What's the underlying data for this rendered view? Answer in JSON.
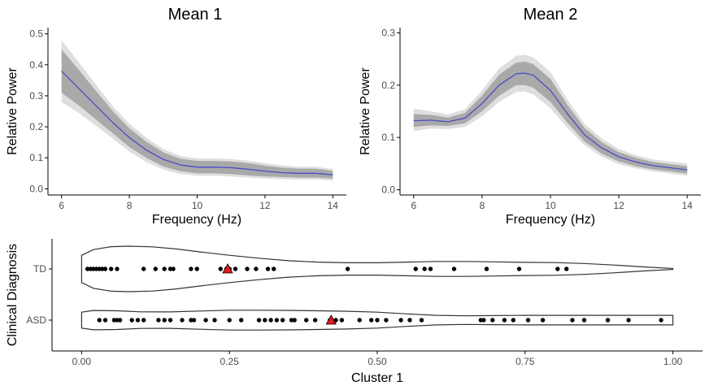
{
  "colors": {
    "line": "#4b4bc8",
    "band_outer": "#dedede",
    "band_inner": "#a9a9a9",
    "points": "#000000",
    "mean_marker": "#e31a1c",
    "violin_stroke": "#333333",
    "axis": "#000000",
    "tick_label": "#4d4d4d"
  },
  "chart_data": [
    {
      "id": "mean1",
      "type": "line",
      "title": "Mean 1",
      "xlabel": "Frequency (Hz)",
      "ylabel": "Relative Power",
      "xlim": [
        5.6,
        14.4
      ],
      "ylim": [
        -0.02,
        0.52
      ],
      "xticks": [
        6,
        8,
        10,
        12,
        14
      ],
      "xtick_labels": [
        "6",
        "8",
        "10",
        "12",
        "14"
      ],
      "yticks": [
        0.0,
        0.1,
        0.2,
        0.3,
        0.4,
        0.5
      ],
      "ytick_labels": [
        "0.0",
        "0.1",
        "0.2",
        "0.3",
        "0.4",
        "0.5"
      ],
      "x": [
        6,
        6.5,
        7,
        7.5,
        8,
        8.5,
        9,
        9.5,
        10,
        10.5,
        11,
        11.5,
        12,
        12.5,
        13,
        13.5,
        14
      ],
      "mean": [
        0.38,
        0.325,
        0.27,
        0.215,
        0.165,
        0.125,
        0.095,
        0.077,
        0.07,
        0.07,
        0.068,
        0.063,
        0.057,
        0.052,
        0.05,
        0.05,
        0.045
      ],
      "inner_lo": [
        0.31,
        0.27,
        0.225,
        0.18,
        0.135,
        0.1,
        0.072,
        0.057,
        0.05,
        0.05,
        0.048,
        0.043,
        0.04,
        0.038,
        0.036,
        0.036,
        0.033
      ],
      "inner_hi": [
        0.45,
        0.385,
        0.318,
        0.252,
        0.195,
        0.152,
        0.118,
        0.097,
        0.09,
        0.09,
        0.088,
        0.083,
        0.075,
        0.068,
        0.065,
        0.065,
        0.058
      ],
      "outer_lo": [
        0.28,
        0.245,
        0.205,
        0.163,
        0.12,
        0.087,
        0.062,
        0.048,
        0.042,
        0.042,
        0.04,
        0.036,
        0.033,
        0.031,
        0.03,
        0.03,
        0.027
      ],
      "outer_hi": [
        0.48,
        0.41,
        0.338,
        0.268,
        0.21,
        0.165,
        0.128,
        0.106,
        0.098,
        0.098,
        0.096,
        0.091,
        0.083,
        0.075,
        0.071,
        0.071,
        0.064
      ]
    },
    {
      "id": "mean2",
      "type": "line",
      "title": "Mean 2",
      "xlabel": "Frequency (Hz)",
      "ylabel": "Relative Power",
      "xlim": [
        5.6,
        14.4
      ],
      "ylim": [
        -0.01,
        0.31
      ],
      "xticks": [
        6,
        8,
        10,
        12,
        14
      ],
      "xtick_labels": [
        "6",
        "8",
        "10",
        "12",
        "14"
      ],
      "yticks": [
        0.0,
        0.1,
        0.2,
        0.3
      ],
      "ytick_labels": [
        "0.0",
        "0.1",
        "0.2",
        "0.3"
      ],
      "x": [
        6,
        6.5,
        7,
        7.5,
        8,
        8.5,
        9,
        9.25,
        9.5,
        10,
        10.5,
        11,
        11.5,
        12,
        12.5,
        13,
        13.5,
        14
      ],
      "mean": [
        0.132,
        0.133,
        0.13,
        0.137,
        0.165,
        0.2,
        0.222,
        0.223,
        0.219,
        0.19,
        0.145,
        0.105,
        0.08,
        0.063,
        0.053,
        0.046,
        0.042,
        0.038
      ],
      "inner_lo": [
        0.12,
        0.123,
        0.122,
        0.127,
        0.15,
        0.18,
        0.2,
        0.2,
        0.195,
        0.168,
        0.128,
        0.092,
        0.069,
        0.054,
        0.045,
        0.039,
        0.035,
        0.031
      ],
      "inner_hi": [
        0.145,
        0.143,
        0.138,
        0.147,
        0.18,
        0.22,
        0.243,
        0.245,
        0.24,
        0.212,
        0.162,
        0.118,
        0.091,
        0.072,
        0.061,
        0.053,
        0.049,
        0.045
      ],
      "outer_lo": [
        0.112,
        0.117,
        0.116,
        0.12,
        0.14,
        0.168,
        0.187,
        0.188,
        0.182,
        0.156,
        0.118,
        0.085,
        0.063,
        0.049,
        0.041,
        0.035,
        0.031,
        0.027
      ],
      "outer_hi": [
        0.155,
        0.15,
        0.144,
        0.154,
        0.19,
        0.232,
        0.256,
        0.258,
        0.253,
        0.225,
        0.172,
        0.126,
        0.098,
        0.078,
        0.066,
        0.058,
        0.054,
        0.05
      ]
    },
    {
      "id": "cluster1",
      "type": "scatter",
      "subtype": "violin",
      "title": "",
      "xlabel": "Cluster 1",
      "ylabel": "Clinical Diagnosis",
      "xlim": [
        -0.05,
        1.05
      ],
      "xticks": [
        0.0,
        0.25,
        0.5,
        0.75,
        1.0
      ],
      "xtick_labels": [
        "0.00",
        "0.25",
        "0.50",
        "0.75",
        "1.00"
      ],
      "categories": [
        "TD",
        "ASD"
      ],
      "groups": [
        {
          "name": "TD",
          "points": [
            0.01,
            0.015,
            0.02,
            0.025,
            0.03,
            0.035,
            0.04,
            0.05,
            0.06,
            0.105,
            0.125,
            0.14,
            0.15,
            0.155,
            0.185,
            0.195,
            0.235,
            0.245,
            0.25,
            0.26,
            0.28,
            0.295,
            0.315,
            0.325,
            0.45,
            0.565,
            0.58,
            0.59,
            0.63,
            0.685,
            0.74,
            0.805,
            0.82
          ],
          "mean": 0.247,
          "violin_x": [
            0.0,
            0.02,
            0.05,
            0.08,
            0.12,
            0.16,
            0.2,
            0.25,
            0.3,
            0.35,
            0.4,
            0.45,
            0.5,
            0.55,
            0.6,
            0.65,
            0.7,
            0.75,
            0.8,
            0.85,
            0.9,
            0.95,
            1.0
          ],
          "violin_w": [
            0.6,
            0.85,
            0.98,
            1.0,
            0.97,
            0.88,
            0.75,
            0.6,
            0.47,
            0.36,
            0.3,
            0.27,
            0.27,
            0.3,
            0.33,
            0.33,
            0.31,
            0.29,
            0.28,
            0.24,
            0.17,
            0.09,
            0.02
          ]
        },
        {
          "name": "ASD",
          "points": [
            0.03,
            0.04,
            0.055,
            0.06,
            0.065,
            0.085,
            0.095,
            0.105,
            0.13,
            0.14,
            0.15,
            0.17,
            0.185,
            0.19,
            0.21,
            0.225,
            0.25,
            0.27,
            0.3,
            0.31,
            0.32,
            0.33,
            0.34,
            0.355,
            0.36,
            0.38,
            0.395,
            0.42,
            0.43,
            0.44,
            0.47,
            0.49,
            0.5,
            0.515,
            0.54,
            0.555,
            0.575,
            0.675,
            0.68,
            0.695,
            0.715,
            0.73,
            0.755,
            0.78,
            0.83,
            0.85,
            0.89,
            0.925,
            0.98
          ],
          "mean": 0.422,
          "violin_x": [
            0.0,
            0.02,
            0.06,
            0.1,
            0.15,
            0.2,
            0.25,
            0.3,
            0.35,
            0.4,
            0.45,
            0.5,
            0.55,
            0.6,
            0.65,
            0.7,
            0.75,
            0.8,
            0.85,
            0.9,
            0.95,
            1.0
          ],
          "violin_w": [
            0.7,
            0.85,
            0.82,
            0.73,
            0.72,
            0.8,
            0.87,
            0.87,
            0.86,
            0.82,
            0.78,
            0.7,
            0.55,
            0.42,
            0.38,
            0.4,
            0.42,
            0.42,
            0.42,
            0.42,
            0.42,
            0.42
          ]
        }
      ]
    }
  ]
}
